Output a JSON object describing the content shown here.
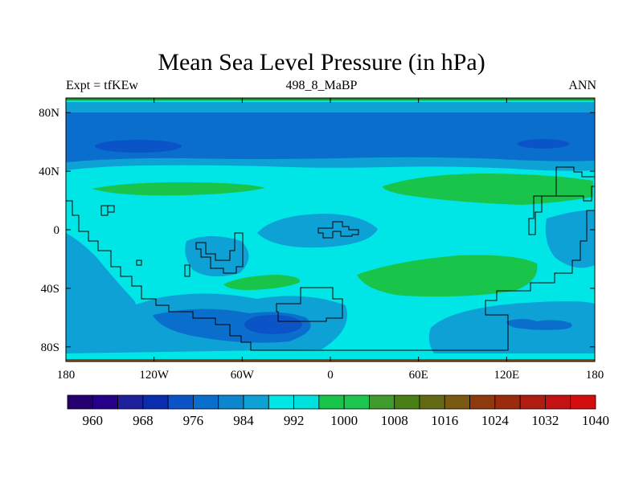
{
  "title": "Mean Sea Level Pressure (in hPa)",
  "subtitle_left": "Expt = tfKEw",
  "subtitle_center": "498_8_MaBP",
  "subtitle_right": "ANN",
  "x_axis": {
    "range": [
      -180,
      180
    ],
    "ticks": [
      {
        "value": -180,
        "label": "180"
      },
      {
        "value": -120,
        "label": "120W"
      },
      {
        "value": -60,
        "label": "60W"
      },
      {
        "value": 0,
        "label": "0"
      },
      {
        "value": 60,
        "label": "60E"
      },
      {
        "value": 120,
        "label": "120E"
      },
      {
        "value": 180,
        "label": "180"
      }
    ]
  },
  "y_axis": {
    "range": [
      -90,
      90
    ],
    "ticks": [
      {
        "value": 80,
        "label": "80N"
      },
      {
        "value": 40,
        "label": "40N"
      },
      {
        "value": 0,
        "label": "0"
      },
      {
        "value": -40,
        "label": "40S"
      },
      {
        "value": -80,
        "label": "80S"
      }
    ]
  },
  "colorbar": {
    "colors": [
      "#24006e",
      "#27008a",
      "#1f1f9c",
      "#0a2db0",
      "#0b54c8",
      "#0a6fcc",
      "#0b86cf",
      "#0da1d5",
      "#00e5e5",
      "#00e0dc",
      "#18c54a",
      "#1ec650",
      "#3f9c2c",
      "#4a7f15",
      "#646a14",
      "#7a5a12",
      "#8e3a0e",
      "#9c2a0d",
      "#b01c10",
      "#c41212",
      "#d40e0e"
    ],
    "labels": [
      "960",
      "968",
      "976",
      "984",
      "992",
      "1000",
      "1008",
      "1016",
      "1024",
      "1032",
      "1040"
    ]
  },
  "map": {
    "colors": {
      "ocean_base": "#00e5e5",
      "band_mid": "#0da1d5",
      "band_deep": "#0a6fcc",
      "low_core": "#0b54c8",
      "high": "#18c54a",
      "land_outline": "#000000",
      "edge_brown": "#8a4a1a",
      "edge_green": "#1a9a3a"
    },
    "regions": [
      {
        "name": "subpolar-low-north",
        "level": 984
      },
      {
        "name": "subpolar-low-north-core",
        "level": 976
      },
      {
        "name": "subtropical-high-north-atlantic",
        "level": 1000
      },
      {
        "name": "subtropical-high-north-pacific",
        "level": 1000
      },
      {
        "name": "subtropical-high-south",
        "level": 1000
      },
      {
        "name": "southern-low-core",
        "level": 976
      }
    ]
  }
}
